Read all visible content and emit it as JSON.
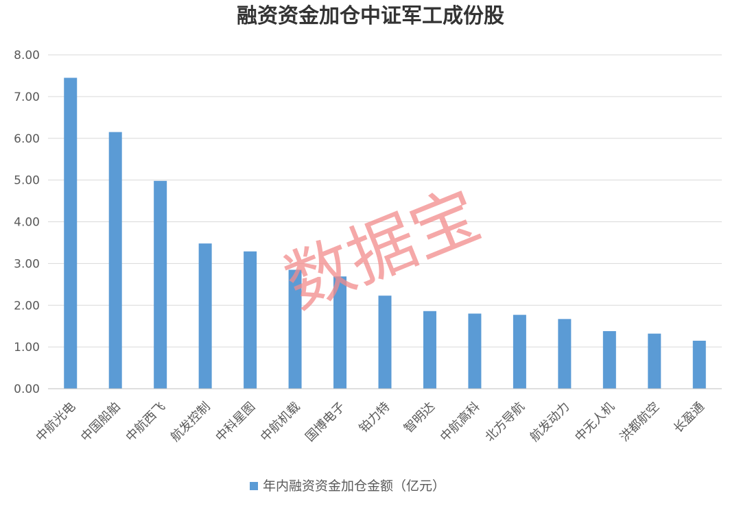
{
  "chart_data": {
    "type": "bar",
    "title": "融资资金加仓中证军工成份股",
    "categories": [
      "中航光电",
      "中国船舶",
      "中航西飞",
      "航发控制",
      "中科星图",
      "中航机载",
      "国博电子",
      "铂力特",
      "智明达",
      "中航高科",
      "北方导航",
      "航发动力",
      "中无人机",
      "洪都航空",
      "长盈通"
    ],
    "series": [
      {
        "name": "年内融资资金加仓金额（亿元）",
        "values": [
          7.45,
          6.15,
          4.98,
          3.48,
          3.29,
          2.85,
          2.69,
          2.23,
          1.86,
          1.8,
          1.77,
          1.67,
          1.38,
          1.32,
          1.15
        ]
      }
    ],
    "ylim": [
      0,
      8
    ],
    "yticks": [
      "0.00",
      "1.00",
      "2.00",
      "3.00",
      "4.00",
      "5.00",
      "6.00",
      "7.00",
      "8.00"
    ],
    "grid": true,
    "legend_position": "bottom",
    "bar_color": "#5B9BD5",
    "watermark": "数据宝",
    "watermark_color": "#F28B8B"
  }
}
